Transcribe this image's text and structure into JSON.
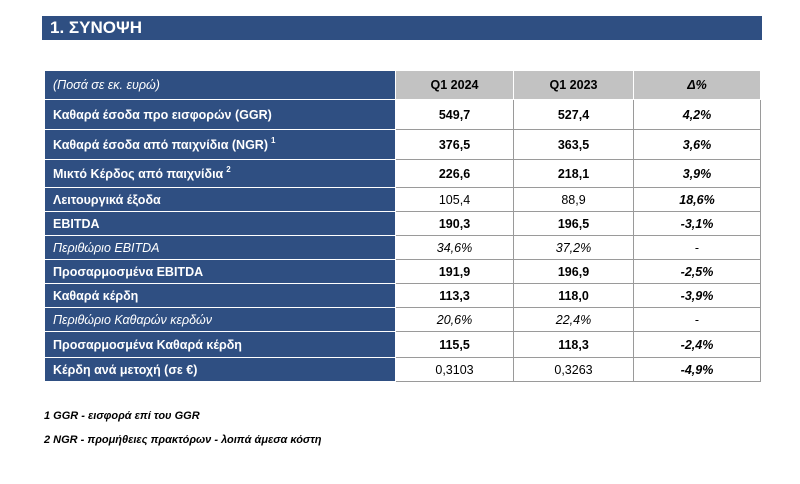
{
  "section": {
    "title": "1.  ΣΥΝΟΨΗ"
  },
  "table": {
    "caption": "(Ποσά σε εκ. ευρώ)",
    "columns": [
      "Q1 2024",
      "Q1 2023",
      "Δ%"
    ],
    "rows": [
      {
        "label": "Καθαρά έσοδα προ εισφορών (GGR)",
        "sup": "",
        "q1_2024": "549,7",
        "q1_2023": "527,4",
        "delta": "4,2%"
      },
      {
        "label": "Καθαρά έσοδα από παιχνίδια (NGR)",
        "sup": "1",
        "q1_2024": "376,5",
        "q1_2023": "363,5",
        "delta": "3,6%"
      },
      {
        "label": "Μικτό Κέρδος από παιχνίδια",
        "sup": "2",
        "q1_2024": "226,6",
        "q1_2023": "218,1",
        "delta": "3,9%"
      },
      {
        "label": "Λειτουργικά έξοδα",
        "sup": "",
        "q1_2024": "105,4",
        "q1_2023": "88,9",
        "delta": "18,6%"
      },
      {
        "label": "EBITDA",
        "sup": "",
        "q1_2024": "190,3",
        "q1_2023": "196,5",
        "delta": "-3,1%"
      },
      {
        "label": "Περιθώριο EBITDA",
        "sup": "",
        "q1_2024": "34,6%",
        "q1_2023": "37,2%",
        "delta": "-"
      },
      {
        "label": "Προσαρμοσμένα EBITDA",
        "sup": "",
        "q1_2024": "191,9",
        "q1_2023": "196,9",
        "delta": "-2,5%"
      },
      {
        "label": "Καθαρά κέρδη",
        "sup": "",
        "q1_2024": "113,3",
        "q1_2023": "118,0",
        "delta": "-3,9%"
      },
      {
        "label": "Περιθώριο Καθαρών κερδών",
        "sup": "",
        "q1_2024": "20,6%",
        "q1_2023": "22,4%",
        "delta": "-"
      },
      {
        "label": "Προσαρμοσμένα Καθαρά κέρδη",
        "sup": "",
        "q1_2024": "115,5",
        "q1_2023": "118,3",
        "delta": "-2,4%"
      },
      {
        "label": "Κέρδη ανά μετοχή (σε €)",
        "sup": "",
        "q1_2024": "0,3103",
        "q1_2023": "0,3263",
        "delta": "-4,9%"
      }
    ]
  },
  "footnotes": [
    "1 GGR - εισφορά επί του GGR",
    "2 NGR - προμήθειες πρακτόρων - λοιπά άμεσα κόστη"
  ]
}
